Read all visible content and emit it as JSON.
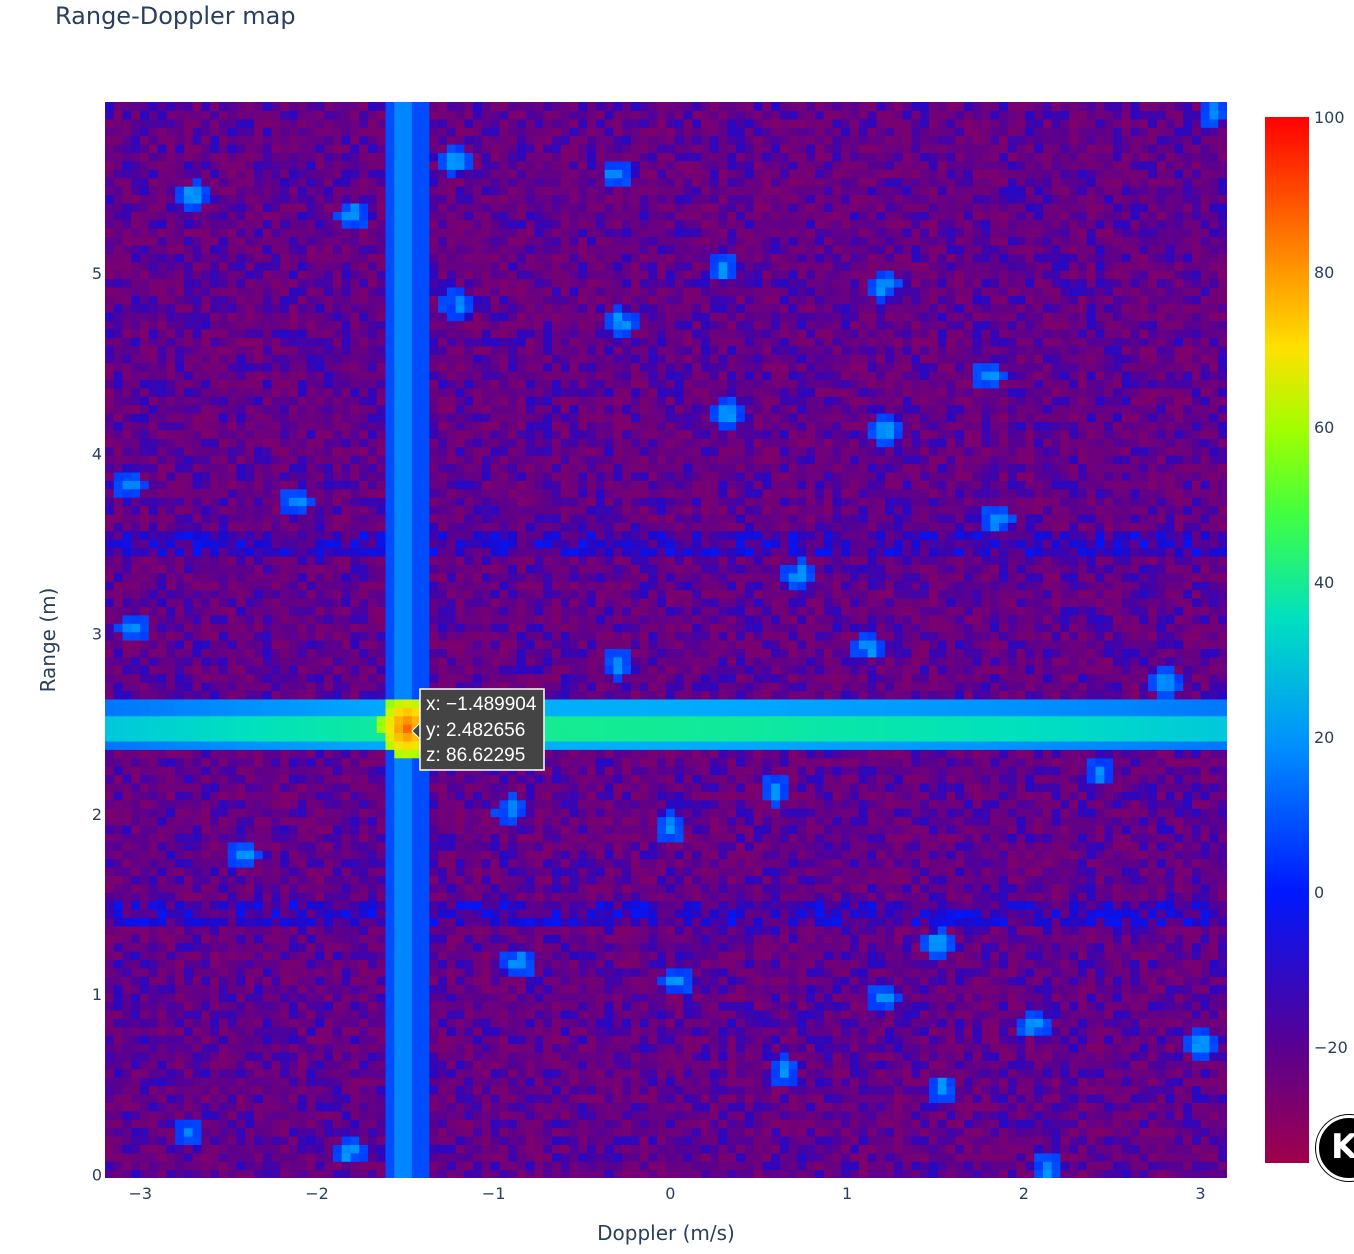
{
  "chart_data": {
    "type": "heatmap",
    "title": "Range-Doppler map",
    "xlabel": "Doppler (m/s)",
    "ylabel": "Range (m)",
    "xlim": [
      -3.2,
      3.15
    ],
    "ylim": [
      -0.02,
      5.95
    ],
    "x_ticks": [
      "−3",
      "−2",
      "−1",
      "0",
      "1",
      "2",
      "3"
    ],
    "x_tick_values": [
      -3,
      -2,
      -1,
      0,
      1,
      2,
      3
    ],
    "y_ticks": [
      "0",
      "1",
      "2",
      "3",
      "4",
      "5"
    ],
    "y_tick_values": [
      0,
      1,
      2,
      3,
      4,
      5
    ],
    "colorscale": "jet-like (dark red, purple, blue, cyan, green, yellow, orange, red)",
    "colorbar": {
      "range": [
        -35,
        100
      ],
      "tick_labels": [
        "100",
        "80",
        "60",
        "40",
        "20",
        "0",
        "−20"
      ],
      "tick_values": [
        100,
        80,
        60,
        40,
        20,
        0,
        -20
      ]
    },
    "background_level": -22,
    "features": {
      "range_ridge": {
        "range": 2.48,
        "level_min": 10,
        "level_max": 28
      },
      "doppler_ridge": {
        "doppler": -1.49,
        "level": 5
      },
      "peak": {
        "doppler": -1.489904,
        "range": 2.482656,
        "value": 86.62295
      }
    },
    "scattered_points": [
      [
        -1.22,
        5.63
      ],
      [
        -0.3,
        5.55
      ],
      [
        -2.7,
        5.43
      ],
      [
        -1.8,
        5.33
      ],
      [
        0.3,
        5.03
      ],
      [
        1.2,
        4.93
      ],
      [
        -1.2,
        4.83
      ],
      [
        -0.28,
        4.73
      ],
      [
        1.8,
        4.43
      ],
      [
        0.32,
        4.23
      ],
      [
        1.22,
        4.13
      ],
      [
        3.07,
        5.9
      ],
      [
        -3.07,
        3.83
      ],
      [
        -2.12,
        3.73
      ],
      [
        1.84,
        3.63
      ],
      [
        -3.03,
        3.03
      ],
      [
        1.12,
        2.93
      ],
      [
        2.8,
        2.73
      ],
      [
        0.6,
        2.13
      ],
      [
        0.0,
        1.93
      ],
      [
        -0.9,
        2.03
      ],
      [
        1.52,
        1.28
      ],
      [
        -0.86,
        1.18
      ],
      [
        0.04,
        1.08
      ],
      [
        1.2,
        0.98
      ],
      [
        2.05,
        0.83
      ],
      [
        3.0,
        0.73
      ],
      [
        0.64,
        0.58
      ],
      [
        1.54,
        0.48
      ],
      [
        -2.73,
        0.23
      ],
      [
        -1.82,
        0.13
      ],
      [
        2.13,
        0.03
      ],
      [
        -2.42,
        1.78
      ],
      [
        2.43,
        2.23
      ],
      [
        -0.3,
        2.83
      ],
      [
        0.73,
        3.33
      ]
    ],
    "tooltip": {
      "x": "x: −1.489904",
      "y": "y: 2.482656",
      "z": "z: 86.62295"
    }
  },
  "logo": {
    "icon": "logo-badge-icon",
    "glyph": "K"
  }
}
